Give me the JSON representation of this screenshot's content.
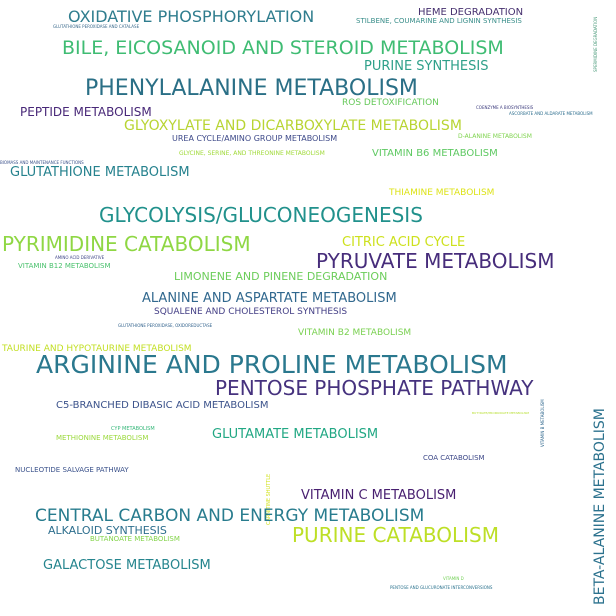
{
  "words": [
    {
      "text": "OXIDATIVE PHOSPHORYLATION",
      "color": "#2f7d8e"
    },
    {
      "text": "HEME DEGRADATION",
      "color": "#46306f"
    },
    {
      "text": "STILBENE, COUMARINE AND LIGNIN SYNTHESIS",
      "color": "#3a8e8a"
    },
    {
      "text": "GLUTATHIONE PEROXIDASE AND CATALASE",
      "color": "#3b6a8c"
    },
    {
      "text": "SPERMIDINE DEGRADATION",
      "color": "#4a9a7a"
    },
    {
      "text": "BILE, EICOSANOID AND STEROID METABOLISM",
      "color": "#3fbc73"
    },
    {
      "text": "PURINE SYNTHESIS",
      "color": "#2fa08a"
    },
    {
      "text": "PHENYLALANINE METABOLISM",
      "color": "#2a6f86"
    },
    {
      "text": "ROS DETOXIFICATION",
      "color": "#66c95a"
    },
    {
      "text": "COENZYME A BIOSYNTHESIS",
      "color": "#3b3a7c"
    },
    {
      "text": "ASCORBATE AND ALDARATE METABOLISM",
      "color": "#2d6e8e"
    },
    {
      "text": "PEPTIDE METABOLISM",
      "color": "#482878"
    },
    {
      "text": "GLYOXYLATE AND DICARBOXYLATE METABOLISM",
      "color": "#b8d432"
    },
    {
      "text": "D-ALANINE METABOLISM",
      "color": "#7fd34e"
    },
    {
      "text": "UREA CYCLE/AMINO GROUP METABOLISM",
      "color": "#3e4a89"
    },
    {
      "text": "GLYCINE, SERINE, AND THREONINE METABOLISM",
      "color": "#a0da39"
    },
    {
      "text": "VITAMIN B6 METABOLISM",
      "color": "#5ec962"
    },
    {
      "text": "BIOMASS AND MAINTENANCE FUNCTIONS",
      "color": "#3b528b"
    },
    {
      "text": "GLUTATHIONE METABOLISM",
      "color": "#26828e"
    },
    {
      "text": "THIAMINE METABOLISM",
      "color": "#dde318"
    },
    {
      "text": "GLYCOLYSIS/GLUCONEOGENESIS",
      "color": "#21918c"
    },
    {
      "text": "PYRIMIDINE CATABOLISM",
      "color": "#8fd744"
    },
    {
      "text": "CITRIC ACID CYCLE",
      "color": "#cde11d"
    },
    {
      "text": "PYRUVATE METABOLISM",
      "color": "#472d7b"
    },
    {
      "text": "AMINO ACID DERIVATIVE",
      "color": "#404688"
    },
    {
      "text": "VITAMIN B12 METABOLISM",
      "color": "#4ac16d"
    },
    {
      "text": "LIMONENE AND PINENE DEGRADATION",
      "color": "#6ccd5a"
    },
    {
      "text": "ALANINE AND ASPARTATE METABOLISM",
      "color": "#31688e"
    },
    {
      "text": "SQUALENE AND CHOLESTEROL SYNTHESIS",
      "color": "#433e85"
    },
    {
      "text": "GLUTATHIONE PEROXIDASE, OXIDOREDUCTASE",
      "color": "#33638d"
    },
    {
      "text": "VITAMIN B2 METABOLISM",
      "color": "#7ad151"
    },
    {
      "text": "TAURINE AND HYPOTAURINE METABOLISM",
      "color": "#c2df23"
    },
    {
      "text": "ARGININE AND PROLINE METABOLISM",
      "color": "#2a788e"
    },
    {
      "text": "PENTOSE PHOSPHATE PATHWAY",
      "color": "#46327e"
    },
    {
      "text": "C5-BRANCHED DIBASIC ACID METABOLISM",
      "color": "#3b528b"
    },
    {
      "text": "BUTYRATE/PROPANOATE METABOLISM",
      "color": "#b5de2b"
    },
    {
      "text": "VITAMIN B METABOLISM",
      "color": "#31688e"
    },
    {
      "text": "BETA-ALANINE METABOLISM",
      "color": "#2c728e"
    },
    {
      "text": "CYP METABOLISM",
      "color": "#35b779"
    },
    {
      "text": "METHIONINE METABOLISM",
      "color": "#9bd93c"
    },
    {
      "text": "GLUTAMATE METABOLISM",
      "color": "#22a884"
    },
    {
      "text": "COA CATABOLISM",
      "color": "#3e4989"
    },
    {
      "text": "NUCLEOTIDE SALVAGE PATHWAY",
      "color": "#3b528b"
    },
    {
      "text": "CARNITINE SHUTTLE",
      "color": "#d2e21b"
    },
    {
      "text": "VITAMIN C METABOLISM",
      "color": "#481f70"
    },
    {
      "text": "CENTRAL CARBON AND ENERGY METABOLISM",
      "color": "#287c8e"
    },
    {
      "text": "PURINE CATABOLISM",
      "color": "#bddf26"
    },
    {
      "text": "ALKALOID SYNTHESIS",
      "color": "#2e6f8e"
    },
    {
      "text": "BUTANOATE METABOLISM",
      "color": "#84d44b"
    },
    {
      "text": "GALACTOSE METABOLISM",
      "color": "#25858e"
    },
    {
      "text": "VITAMIN D",
      "color": "#73d056"
    },
    {
      "text": "PENTOSE AND GLUCURONATE INTERCONVERSIONS",
      "color": "#2c738e"
    }
  ]
}
